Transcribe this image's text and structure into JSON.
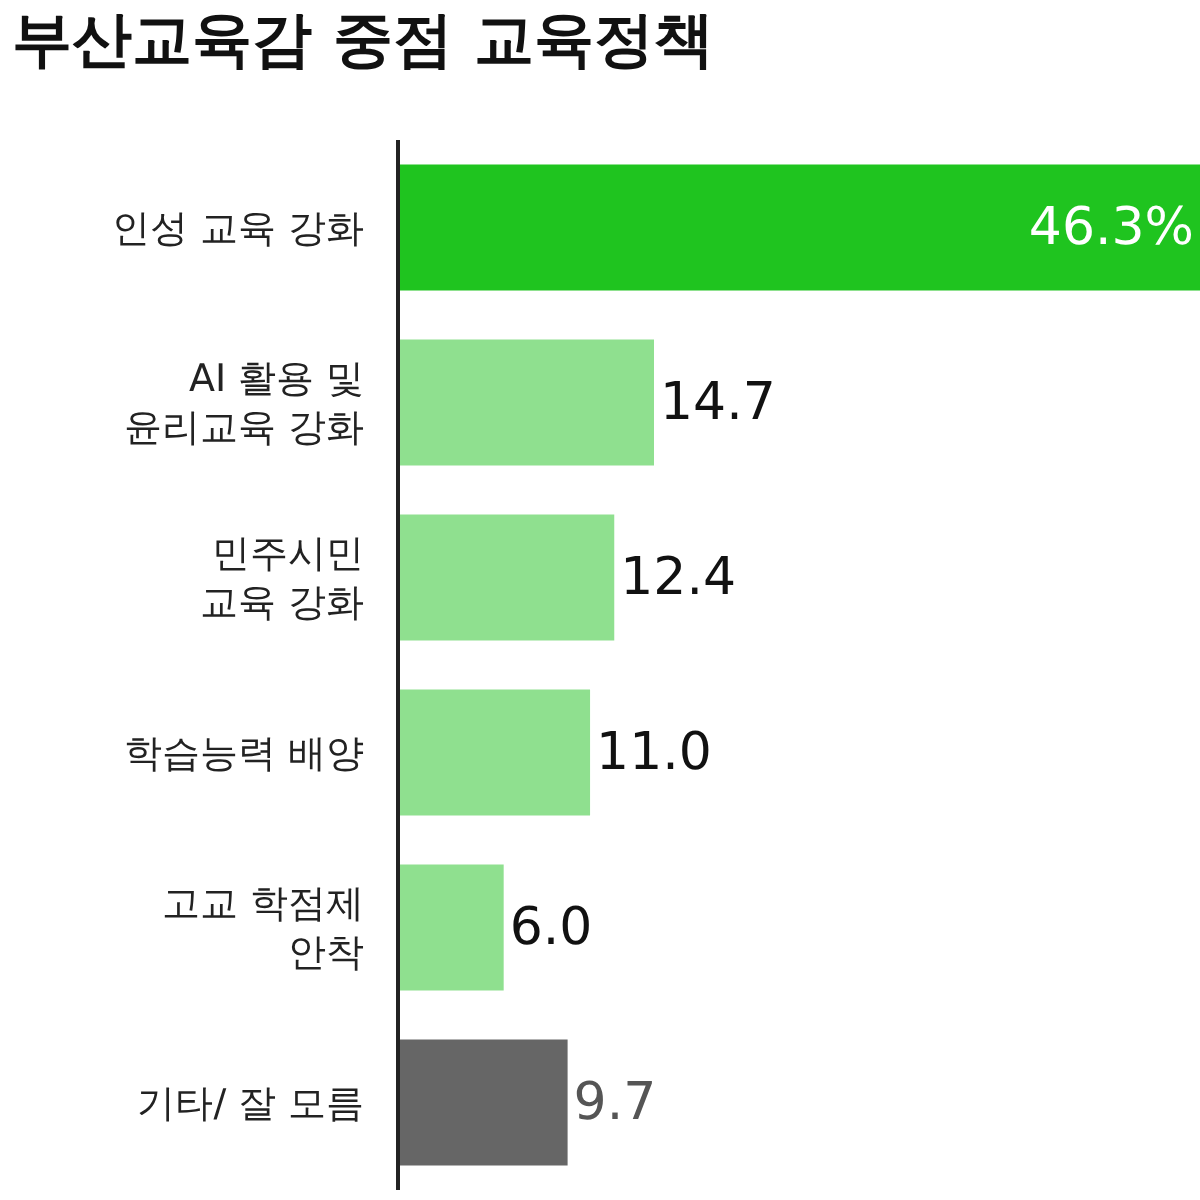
{
  "chart_data": {
    "type": "bar",
    "orientation": "horizontal",
    "title": "부산교육감 중점 교육정책",
    "categories": [
      "인성 교육 강화",
      "AI 활용 및\n윤리교육 강화",
      "민주시민\n교육 강화",
      "학습능력 배양",
      "고교 학점제\n안착",
      "기타/ 잘 모름"
    ],
    "values": [
      46.3,
      14.7,
      12.4,
      11.0,
      6.0,
      9.7
    ],
    "colors": [
      "#1fc41f",
      "#8fe08f",
      "#8fe08f",
      "#8fe08f",
      "#8fe08f",
      "#666666"
    ],
    "value_labels": [
      "46.3%",
      "14.7",
      "12.4",
      "11.0",
      "6.0",
      "9.7"
    ],
    "tick_labels": "y"
  }
}
